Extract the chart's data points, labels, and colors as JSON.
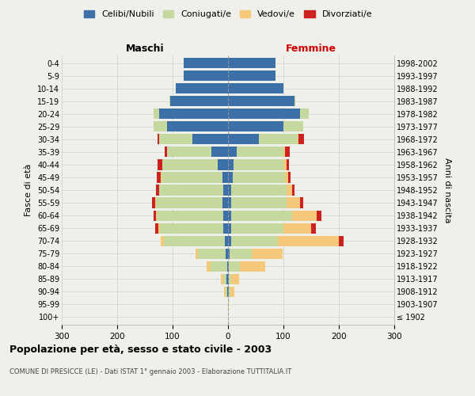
{
  "age_groups": [
    "100+",
    "95-99",
    "90-94",
    "85-89",
    "80-84",
    "75-79",
    "70-74",
    "65-69",
    "60-64",
    "55-59",
    "50-54",
    "45-49",
    "40-44",
    "35-39",
    "30-34",
    "25-29",
    "20-24",
    "15-19",
    "10-14",
    "5-9",
    "0-4"
  ],
  "birth_years": [
    "≤ 1902",
    "1903-1907",
    "1908-1912",
    "1913-1917",
    "1918-1922",
    "1923-1927",
    "1928-1932",
    "1933-1937",
    "1938-1942",
    "1943-1947",
    "1948-1952",
    "1953-1957",
    "1958-1962",
    "1963-1967",
    "1968-1972",
    "1973-1977",
    "1978-1982",
    "1983-1987",
    "1988-1992",
    "1993-1997",
    "1998-2002"
  ],
  "maschi": {
    "celibi": [
      0,
      0,
      2,
      3,
      2,
      4,
      6,
      8,
      8,
      10,
      9,
      10,
      18,
      30,
      65,
      110,
      125,
      105,
      95,
      80,
      80
    ],
    "coniugati": [
      0,
      0,
      3,
      5,
      30,
      50,
      110,
      115,
      120,
      120,
      115,
      110,
      100,
      80,
      60,
      25,
      10,
      1,
      0,
      0,
      0
    ],
    "vedovi": [
      0,
      0,
      2,
      5,
      6,
      5,
      5,
      3,
      2,
      2,
      1,
      1,
      1,
      0,
      0,
      0,
      0,
      0,
      0,
      0,
      0
    ],
    "divorziati": [
      0,
      0,
      0,
      0,
      0,
      0,
      0,
      5,
      5,
      5,
      5,
      8,
      8,
      5,
      2,
      0,
      0,
      0,
      0,
      0,
      0
    ]
  },
  "femmine": {
    "nubili": [
      0,
      0,
      2,
      2,
      2,
      3,
      5,
      5,
      5,
      5,
      5,
      8,
      10,
      15,
      55,
      100,
      130,
      120,
      100,
      85,
      85
    ],
    "coniugate": [
      0,
      0,
      2,
      3,
      20,
      40,
      85,
      95,
      110,
      100,
      100,
      95,
      90,
      85,
      70,
      35,
      15,
      1,
      0,
      0,
      0
    ],
    "vedove": [
      0,
      2,
      8,
      15,
      45,
      55,
      110,
      50,
      45,
      25,
      10,
      5,
      5,
      3,
      2,
      0,
      0,
      0,
      0,
      0,
      0
    ],
    "divorziate": [
      0,
      0,
      0,
      0,
      0,
      0,
      8,
      8,
      8,
      5,
      5,
      5,
      5,
      8,
      10,
      0,
      0,
      0,
      0,
      0,
      0
    ]
  },
  "colors": {
    "celibi": "#3d6fa8",
    "coniugati": "#c5d8a0",
    "vedovi": "#f5c87a",
    "divorziati": "#cc2222"
  },
  "xlim": 300,
  "title": "Popolazione per età, sesso e stato civile - 2003",
  "subtitle": "COMUNE DI PRESICCE (LE) - Dati ISTAT 1° gennaio 2003 - Elaborazione TUTTITALIA.IT",
  "ylabel": "Fasce di età",
  "ylabel_right": "Anni di nascita",
  "legend_labels": [
    "Celibi/Nubili",
    "Coniugati/e",
    "Vedovi/e",
    "Divorziati/e"
  ],
  "background_color": "#f0f0eb"
}
